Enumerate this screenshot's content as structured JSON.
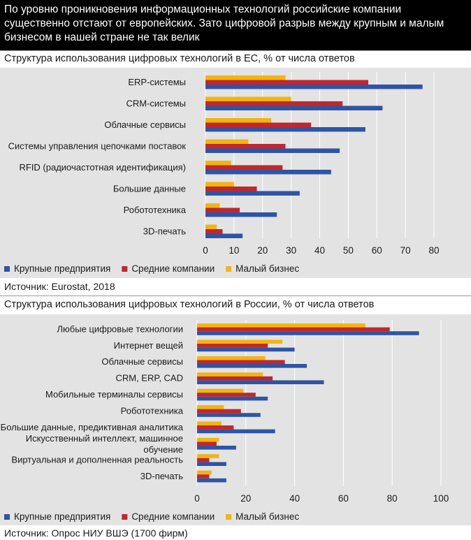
{
  "header": {
    "text": "По уровню проникновения информационных технологий российские компании существенно отстают от европейских. Зато цифровой разрыв между крупным и малым бизнесом в нашей стране не так велик"
  },
  "colors": {
    "large": "#2e55a4",
    "medium": "#c1272d",
    "small": "#f2b50f",
    "panel": "#e3e3e3",
    "header_bg": "#000000"
  },
  "chart_data": [
    {
      "type": "bar",
      "orientation": "horizontal",
      "title": "Структура использования цифровых технологий в ЕС, % от числа ответов",
      "categories": [
        "ERP-системы",
        "CRM-системы",
        "Облачные сервисы",
        "Системы управления цепочками поставок",
        "RFID (радиочастотная идентификация)",
        "Большие данные",
        "Робототехника",
        "3D-печать"
      ],
      "series": [
        {
          "name": "Малый бизнес",
          "color": "#f2b50f",
          "values": [
            28,
            30,
            23,
            15,
            9,
            10,
            5,
            4
          ]
        },
        {
          "name": "Средние компании",
          "color": "#c1272d",
          "values": [
            57,
            48,
            37,
            28,
            27,
            18,
            12,
            6
          ]
        },
        {
          "name": "Крупные предприятия",
          "color": "#2e55a4",
          "values": [
            76,
            62,
            56,
            47,
            44,
            33,
            25,
            13
          ]
        }
      ],
      "legend": [
        "Крупные предприятия",
        "Средние компании",
        "Малый бизнес"
      ],
      "xlim": [
        0,
        80
      ],
      "xticks": [
        0,
        10,
        20,
        30,
        40,
        50,
        60,
        70,
        80
      ],
      "source": "Источник: Eurostat, 2018"
    },
    {
      "type": "bar",
      "orientation": "horizontal",
      "title": "Структура использования цифровых технологий в России, % от числа ответов",
      "categories": [
        "Любые цифровые технологии",
        "Интернет вещей",
        "Облачные сервисы",
        "CRM, ERP, CAD",
        "Мобильные терминалы сервисы",
        "Робототехника",
        "Большие данные, предиктивная аналитика",
        "Искусственный интеллект, машинное обучение",
        "Виртуальная и дополненная реальность",
        "3D-печать"
      ],
      "series": [
        {
          "name": "Малый бизнес",
          "color": "#f2b50f",
          "values": [
            69,
            35,
            28,
            27,
            19,
            11,
            10,
            9,
            9,
            6
          ]
        },
        {
          "name": "Средние компании",
          "color": "#c1272d",
          "values": [
            79,
            29,
            36,
            31,
            24,
            18,
            15,
            8,
            5,
            5
          ]
        },
        {
          "name": "Крупные предприятия",
          "color": "#2e55a4",
          "values": [
            91,
            40,
            45,
            52,
            29,
            26,
            32,
            16,
            12,
            12
          ]
        }
      ],
      "legend": [
        "Крупные предприятия",
        "Средние компании",
        "Малый бизнес"
      ],
      "xlim": [
        0,
        100
      ],
      "xticks": [
        0,
        20,
        40,
        60,
        80,
        100
      ],
      "source": "Источник: Опрос НИУ ВШЭ (1700 фирм)"
    }
  ]
}
